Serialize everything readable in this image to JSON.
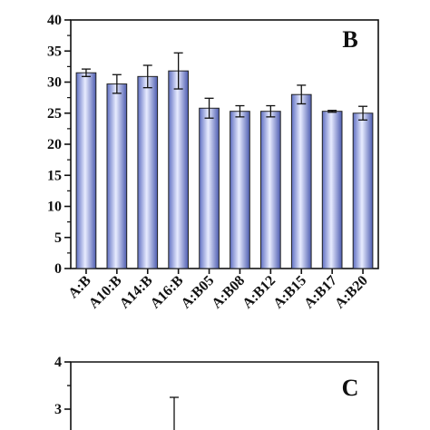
{
  "chart_data": [
    {
      "type": "bar",
      "panel_label": "B",
      "categories": [
        "A:B",
        "A10:B",
        "A14:B",
        "A16:B",
        "A:B05",
        "A:B08",
        "A:B12",
        "A:B15",
        "A:B17",
        "A:B20"
      ],
      "values": [
        31.5,
        29.7,
        30.9,
        31.8,
        25.8,
        25.3,
        25.3,
        28.0,
        25.3,
        25.0
      ],
      "errors": [
        0.6,
        1.5,
        1.8,
        2.9,
        1.6,
        0.9,
        0.9,
        1.5,
        0.15,
        1.1
      ],
      "ylim": [
        0,
        40
      ],
      "yticks": [
        "0",
        "5",
        "10",
        "15",
        "20",
        "25",
        "30",
        "35",
        "40"
      ],
      "bar_color": "#9aa8e8"
    },
    {
      "type": "bar",
      "panel_label": "C",
      "ylim": [
        2,
        4
      ],
      "yticks": [
        "3",
        "4"
      ],
      "visible_error_bar_top": 3.25
    }
  ]
}
